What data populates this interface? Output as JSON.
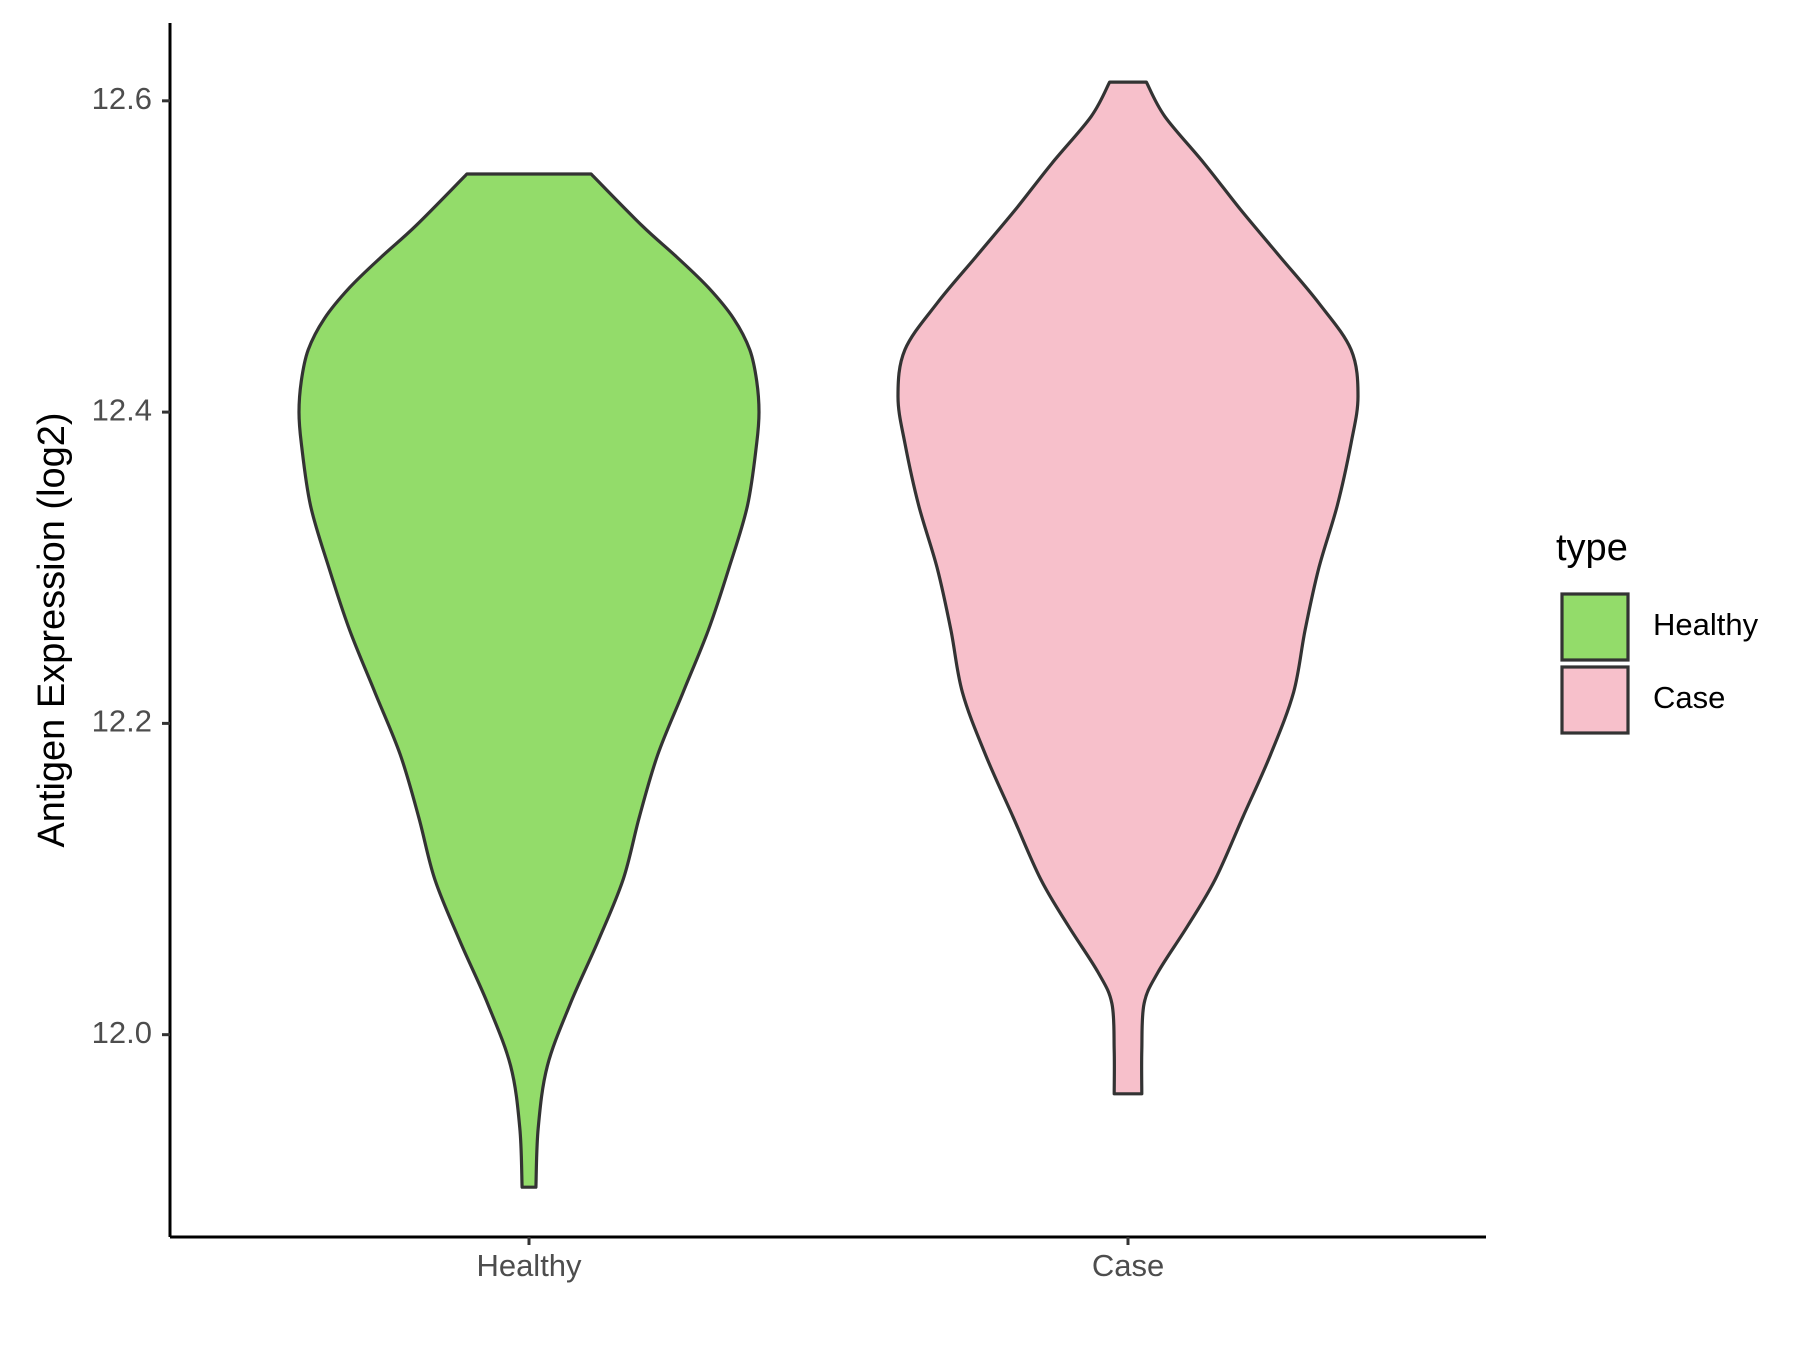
{
  "chart_data": {
    "type": "violin",
    "title": "",
    "xlabel": "",
    "ylabel": "Antigen Expression (log2)",
    "ylim": [
      11.87,
      12.65
    ],
    "y_ticks": [
      "12.0",
      "12.2",
      "12.4",
      "12.6"
    ],
    "y_tick_values": [
      12.0,
      12.2,
      12.4,
      12.6
    ],
    "categories": [
      "Healthy",
      "Case"
    ],
    "grid": false,
    "legend": {
      "title": "type",
      "placement": "right",
      "items": [
        {
          "label": "Healthy",
          "color": "#93dc6a"
        },
        {
          "label": "Case",
          "color": "#f7c0cb"
        }
      ]
    },
    "series": [
      {
        "name": "Healthy",
        "color": "#93dc6a",
        "y_min": 11.902,
        "y_max": 12.553,
        "density_profile": [
          [
            11.902,
            0.03
          ],
          [
            11.94,
            0.04
          ],
          [
            11.98,
            0.08
          ],
          [
            12.02,
            0.18
          ],
          [
            12.06,
            0.3
          ],
          [
            12.1,
            0.41
          ],
          [
            12.14,
            0.48
          ],
          [
            12.18,
            0.56
          ],
          [
            12.22,
            0.67
          ],
          [
            12.26,
            0.78
          ],
          [
            12.3,
            0.87
          ],
          [
            12.34,
            0.95
          ],
          [
            12.38,
            0.99
          ],
          [
            12.4,
            1.0
          ],
          [
            12.42,
            0.99
          ],
          [
            12.44,
            0.96
          ],
          [
            12.46,
            0.89
          ],
          [
            12.48,
            0.78
          ],
          [
            12.5,
            0.64
          ],
          [
            12.52,
            0.49
          ],
          [
            12.553,
            0.27
          ]
        ]
      },
      {
        "name": "Case",
        "color": "#f7c0cb",
        "y_min": 11.962,
        "y_max": 12.612,
        "density_profile": [
          [
            11.962,
            0.06
          ],
          [
            11.99,
            0.06
          ],
          [
            12.02,
            0.07
          ],
          [
            12.04,
            0.13
          ],
          [
            12.07,
            0.26
          ],
          [
            12.1,
            0.38
          ],
          [
            12.14,
            0.5
          ],
          [
            12.18,
            0.62
          ],
          [
            12.22,
            0.72
          ],
          [
            12.26,
            0.77
          ],
          [
            12.3,
            0.83
          ],
          [
            12.34,
            0.91
          ],
          [
            12.38,
            0.97
          ],
          [
            12.41,
            1.0
          ],
          [
            12.44,
            0.97
          ],
          [
            12.47,
            0.83
          ],
          [
            12.5,
            0.66
          ],
          [
            12.53,
            0.49
          ],
          [
            12.56,
            0.33
          ],
          [
            12.59,
            0.16
          ],
          [
            12.612,
            0.08
          ]
        ]
      }
    ]
  }
}
